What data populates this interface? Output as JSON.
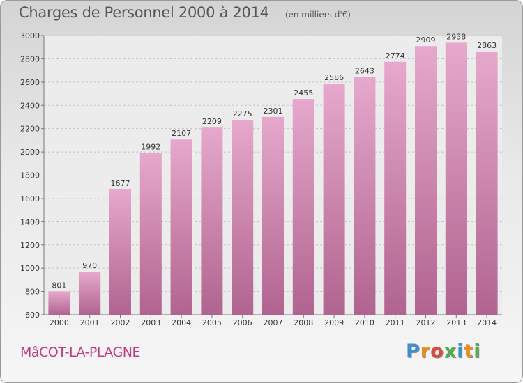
{
  "header": {
    "title": "Charges de Personnel 2000 à 2014",
    "subtitle": "(en milliers d'€)"
  },
  "footer": {
    "commune": "MâCOT-LA-PLAGNE",
    "brand": "Proxiti",
    "brand_letters": [
      {
        "ch": "P",
        "color": "#3b8fd4"
      },
      {
        "ch": "r",
        "color": "#f08a1c"
      },
      {
        "ch": "o",
        "color": "#e2473a"
      },
      {
        "ch": "x",
        "color": "#4fb14b"
      },
      {
        "ch": "i",
        "color": "#3b8fd4"
      },
      {
        "ch": "t",
        "color": "#f08a1c"
      },
      {
        "ch": "i",
        "color": "#4fb14b"
      }
    ]
  },
  "chart_data": {
    "type": "bar",
    "categories": [
      "2000",
      "2001",
      "2002",
      "2003",
      "2004",
      "2005",
      "2006",
      "2007",
      "2008",
      "2009",
      "2010",
      "2011",
      "2012",
      "2013",
      "2014"
    ],
    "values": [
      801,
      970,
      1677,
      1992,
      2107,
      2209,
      2275,
      2301,
      2455,
      2586,
      2643,
      2774,
      2909,
      2938,
      2863
    ],
    "ylim": [
      600,
      3000
    ],
    "yticks": [
      600,
      800,
      1000,
      1200,
      1400,
      1600,
      1800,
      2000,
      2200,
      2400,
      2600,
      2800,
      3000
    ],
    "grid": true,
    "bar_color_top": "#e6a8cc",
    "bar_color_bottom": "#b0648f"
  }
}
